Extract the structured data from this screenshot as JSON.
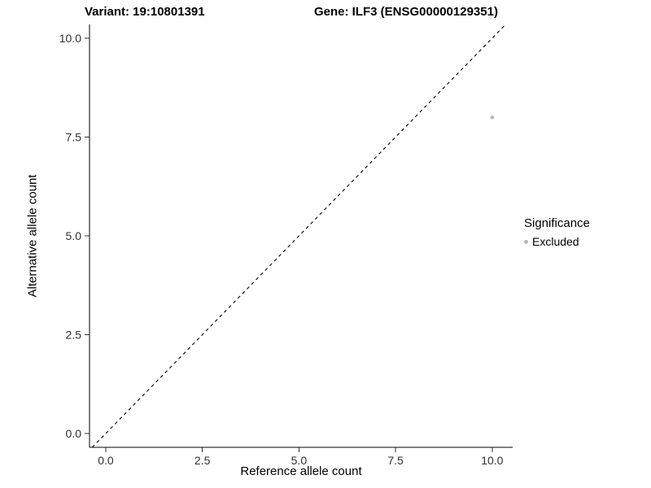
{
  "chart_data": {
    "type": "scatter",
    "title_left": "Variant: 19:10801391",
    "title_right": "Gene: ILF3 (ENSG00000129351)",
    "xlabel": "Reference allele count",
    "ylabel": "Alternative allele count",
    "xlim": [
      -0.42,
      10.53
    ],
    "ylim": [
      -0.35,
      10.35
    ],
    "x_ticks": {
      "values": [
        0.0,
        2.5,
        5.0,
        7.5,
        10.0
      ],
      "labels": [
        "0.0",
        "2.5",
        "5.0",
        "7.5",
        "10.0"
      ]
    },
    "y_ticks": {
      "values": [
        0.0,
        2.5,
        5.0,
        7.5,
        10.0
      ],
      "labels": [
        "0.0",
        "2.5",
        "5.0",
        "7.5",
        "10.0"
      ]
    },
    "grid": false,
    "reference_line": {
      "kind": "identity",
      "style": "dashed",
      "color": "#000000"
    },
    "series": [
      {
        "name": "Excluded",
        "color": "#b8b8b8",
        "points": [
          {
            "x": 10,
            "y": 8
          }
        ]
      }
    ],
    "legend": {
      "title": "Significance",
      "position": "right",
      "items": [
        {
          "label": "Excluded",
          "color": "#b8b8b8"
        }
      ]
    },
    "colors": {
      "axis_text": "#303030",
      "axis_line": "#000000"
    }
  }
}
